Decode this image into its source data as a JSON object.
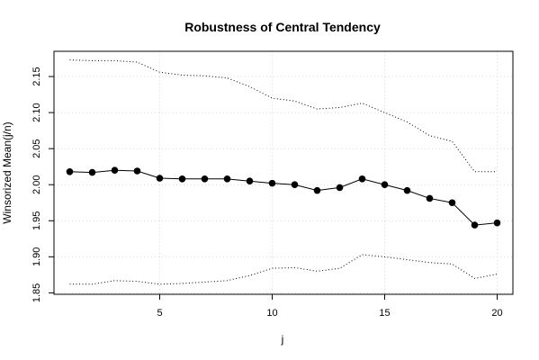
{
  "chart_data": {
    "type": "line",
    "title": "Robustness of Central Tendency",
    "xlabel": "j",
    "ylabel": "Winsorized Mean(j/n)",
    "xlim": [
      0.3,
      20.7
    ],
    "ylim": [
      1.848,
      2.185
    ],
    "x_ticks": [
      5,
      10,
      15,
      20
    ],
    "y_ticks": [
      1.85,
      1.9,
      1.95,
      2.0,
      2.05,
      2.1,
      2.15
    ],
    "y_tick_labels": [
      "1.85",
      "1.90",
      "1.95",
      "2.00",
      "2.05",
      "2.10",
      "2.15"
    ],
    "grid": true,
    "x": [
      1,
      2,
      3,
      4,
      5,
      6,
      7,
      8,
      9,
      10,
      11,
      12,
      13,
      14,
      15,
      16,
      17,
      18,
      19,
      20
    ],
    "series": [
      {
        "style": "line+points",
        "values": [
          2.018,
          2.017,
          2.02,
          2.019,
          2.009,
          2.008,
          2.008,
          2.008,
          2.005,
          2.002,
          2.0,
          1.992,
          1.996,
          2.008,
          2.0,
          1.992,
          1.981,
          1.975,
          1.944,
          1.947
        ]
      },
      {
        "style": "dotted",
        "values": [
          2.173,
          2.172,
          2.172,
          2.17,
          2.156,
          2.152,
          2.151,
          2.148,
          2.136,
          2.12,
          2.116,
          2.105,
          2.107,
          2.113,
          2.1,
          2.087,
          2.068,
          2.06,
          2.018,
          2.018
        ]
      },
      {
        "style": "dotted",
        "values": [
          1.862,
          1.862,
          1.867,
          1.866,
          1.862,
          1.863,
          1.865,
          1.867,
          1.874,
          1.884,
          1.885,
          1.88,
          1.884,
          1.903,
          1.9,
          1.896,
          1.892,
          1.89,
          1.87,
          1.876
        ]
      }
    ]
  }
}
